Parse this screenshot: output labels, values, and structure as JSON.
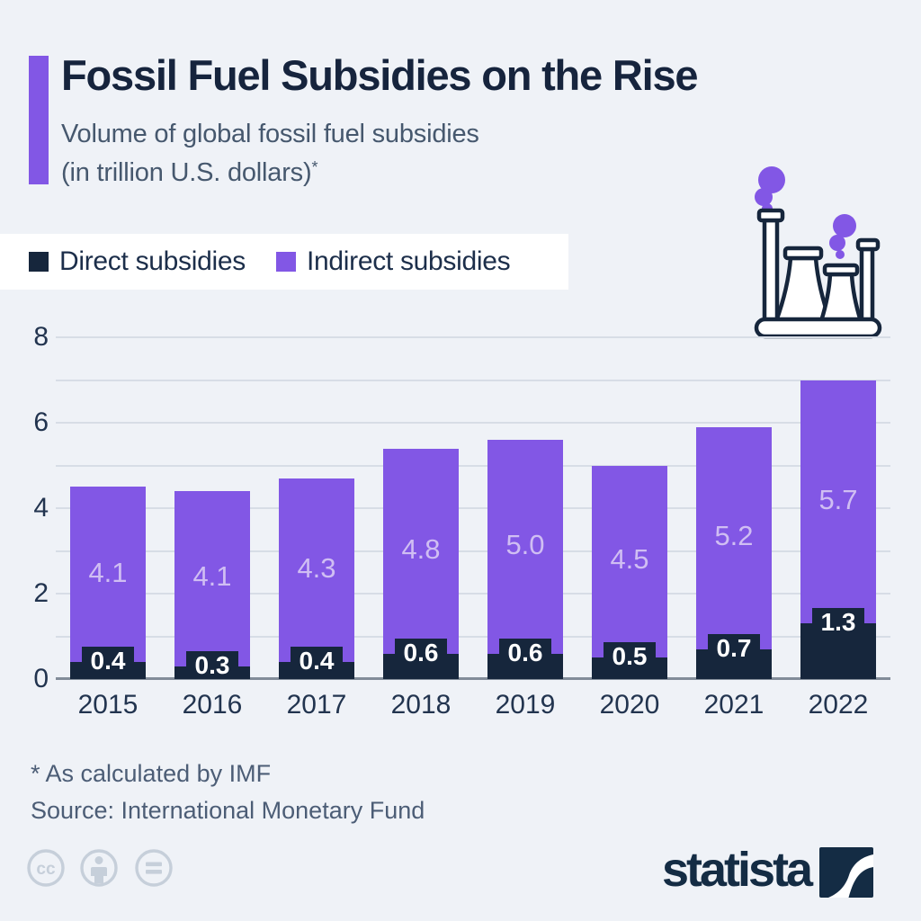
{
  "header": {
    "title": "Fossil Fuel Subsidies on the Rise",
    "subtitle_line1": "Volume of global fossil fuel subsidies",
    "subtitle_line2": "(in trillion U.S. dollars)",
    "footnote_marker": "*"
  },
  "legend": {
    "items": [
      {
        "label": "Direct subsidies",
        "color": "#16263c"
      },
      {
        "label": "Indirect subsidies",
        "color": "#8257e5"
      }
    ]
  },
  "chart_data": {
    "type": "bar",
    "stacked": true,
    "title": "Volume of global fossil fuel subsidies (in trillion U.S. dollars)",
    "categories": [
      "2015",
      "2016",
      "2017",
      "2018",
      "2019",
      "2020",
      "2021",
      "2022"
    ],
    "series": [
      {
        "name": "Direct subsidies",
        "color": "#16263c",
        "label_color": "#ffffff",
        "values": [
          0.4,
          0.3,
          0.4,
          0.6,
          0.6,
          0.5,
          0.7,
          1.3
        ]
      },
      {
        "name": "Indirect subsidies",
        "color": "#8257e5",
        "label_color": "#d0bef3",
        "values": [
          4.1,
          4.1,
          4.3,
          4.8,
          5.0,
          4.5,
          5.2,
          5.7
        ]
      }
    ],
    "totals": [
      4.5,
      4.4,
      4.7,
      5.4,
      5.6,
      5.0,
      5.9,
      7.0
    ],
    "ylim": [
      0,
      8
    ],
    "yticks": [
      0,
      2,
      4,
      6,
      8
    ],
    "grid": "horizontal-every-1-unit",
    "legend_position": "top-left",
    "value_label_format": "one-decimal"
  },
  "notes": {
    "asterisk": "* As calculated by IMF",
    "source": "Source: International Monetary Fund"
  },
  "footer": {
    "brand": "statista",
    "license": "cc-by-nd"
  },
  "colors": {
    "background": "#eff2f7",
    "title": "#16243d",
    "subtitle": "#46586e",
    "accent_bar": "#8257e5",
    "gridline": "#d7dde6",
    "axis_line": "#828c99",
    "smoke": "#8257e5",
    "brand_navy": "#142c44"
  }
}
